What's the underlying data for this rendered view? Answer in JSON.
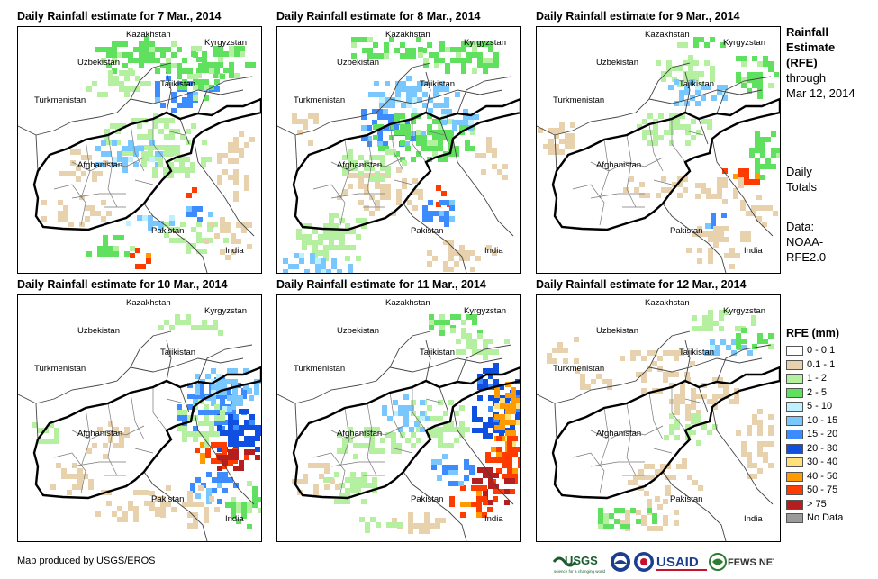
{
  "panels": [
    {
      "title": "Daily Rainfall estimate for 7 Mar., 2014",
      "pattern": "d7"
    },
    {
      "title": "Daily Rainfall estimate for 8 Mar., 2014",
      "pattern": "d8"
    },
    {
      "title": "Daily Rainfall estimate for 9 Mar., 2014",
      "pattern": "d9"
    },
    {
      "title": "Daily Rainfall estimate for 10 Mar., 2014",
      "pattern": "d10"
    },
    {
      "title": "Daily Rainfall estimate for 11 Mar., 2014",
      "pattern": "d11"
    },
    {
      "title": "Daily Rainfall estimate for 12 Mar., 2014",
      "pattern": "d12"
    }
  ],
  "country_labels": {
    "kazakhstan": "Kazakhstan",
    "kyrgyzstan": "Kyrgyzstan",
    "uzbekistan": "Uzbekistan",
    "tajikistan": "Tajikistan",
    "turkmenistan": "Turkmenistan",
    "afghanistan": "Afghanistan",
    "pakistan": "Pakistan",
    "india": "India"
  },
  "sidebar": {
    "title_line1": "Rainfall",
    "title_line2": "Estimate",
    "title_line3": "(RFE)",
    "through": "through",
    "date": "Mar 12, 2014",
    "daily1": "Daily",
    "daily2": "Totals",
    "data1": "Data:",
    "data2": "NOAA-",
    "data3": "RFE2.0"
  },
  "legend": {
    "title": "RFE (mm)",
    "items": [
      {
        "label": "0 - 0.1",
        "color": "#ffffff"
      },
      {
        "label": "0.1 - 1",
        "color": "#e8d2ae"
      },
      {
        "label": "1 - 2",
        "color": "#b4f0a0"
      },
      {
        "label": "2 - 5",
        "color": "#5fe05f"
      },
      {
        "label": "5 - 10",
        "color": "#bff0ff"
      },
      {
        "label": "10 - 15",
        "color": "#78c8ff"
      },
      {
        "label": "15 - 20",
        "color": "#3c8cff"
      },
      {
        "label": "20 - 30",
        "color": "#1050e0"
      },
      {
        "label": "30 - 40",
        "color": "#ffe07a"
      },
      {
        "label": "40 - 50",
        "color": "#ff9a00"
      },
      {
        "label": "50 - 75",
        "color": "#ff3c00"
      },
      {
        "label": "> 75",
        "color": "#b41e1e"
      },
      {
        "label": "No Data",
        "color": "#9a9a9a"
      }
    ]
  },
  "footer": {
    "credit": "Map produced by USGS/EROS"
  },
  "logos": {
    "usgs": "USGS",
    "usaid": "USAID",
    "fewsnet": "FEWS NET",
    "usgs_tagline": "science for a changing world"
  }
}
